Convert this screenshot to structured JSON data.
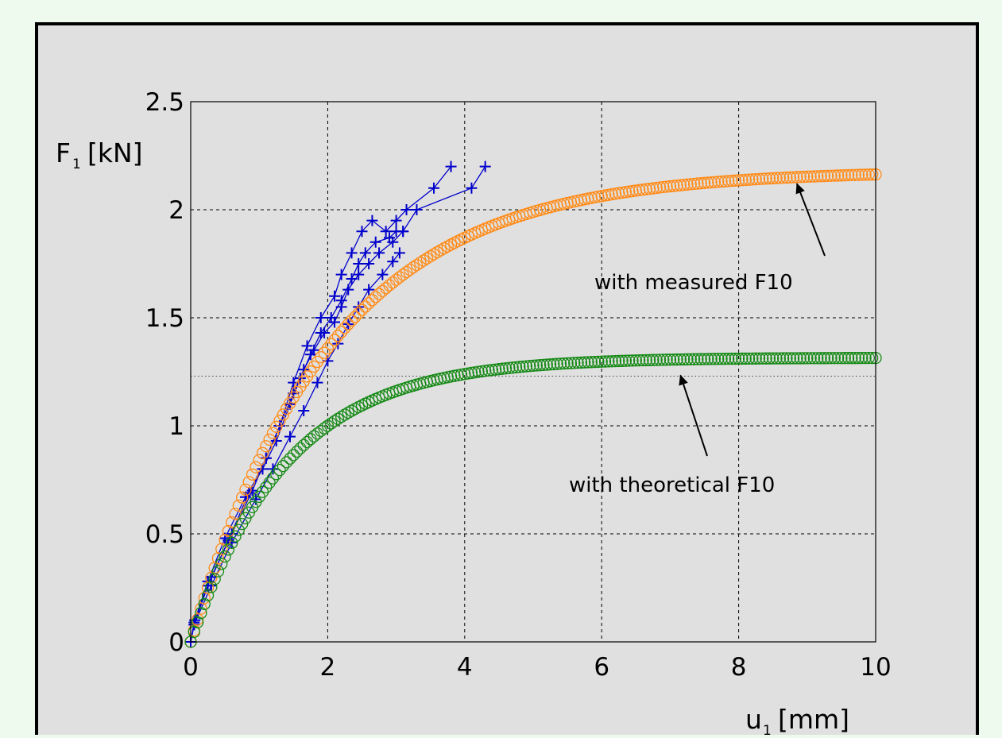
{
  "colors": {
    "page_background": "#effaef",
    "plot_background": "#e0e0e0",
    "measured": "#0000cc",
    "theoretical_measured_f10": "#ff8c1a",
    "theoretical_theoretical_f10": "#168a16",
    "grid": "#000000"
  },
  "chart_data": {
    "type": "line",
    "title": "",
    "xlabel": {
      "main": "u",
      "sub": "1",
      "unit": "[mm]"
    },
    "ylabel": {
      "main": "F",
      "sub": "1",
      "unit": "[kN]"
    },
    "xlim": [
      0,
      10
    ],
    "ylim": [
      0,
      2.5
    ],
    "xticks": [
      0,
      2,
      4,
      6,
      8,
      10
    ],
    "yticks": [
      0,
      0.5,
      1,
      1.5,
      2,
      2.5
    ],
    "xtick_labels": [
      "0",
      "2",
      "4",
      "6",
      "8",
      "10"
    ],
    "ytick_labels": [
      "0",
      "0.5",
      "1",
      "1.5",
      "2",
      "2.5"
    ],
    "grid": true,
    "reference_line": {
      "y": 1.23,
      "style": "dotted"
    },
    "series": [
      {
        "marker": "plus",
        "color_key": "measured",
        "x": [
          0,
          0.06,
          0.3,
          0.6,
          0.9,
          1.1,
          1.3,
          1.5,
          1.7,
          1.9,
          2.1,
          2.2,
          2.35,
          2.5,
          2.65,
          2.85,
          3.0,
          3.15,
          3.55,
          3.8
        ],
        "y": [
          0,
          0.1,
          0.3,
          0.5,
          0.7,
          0.85,
          1.0,
          1.2,
          1.37,
          1.5,
          1.6,
          1.7,
          1.8,
          1.9,
          1.95,
          1.9,
          1.95,
          2.0,
          2.1,
          2.2
        ]
      },
      {
        "marker": "plus",
        "color_key": "measured",
        "x": [
          0,
          0.05,
          0.25,
          0.5,
          0.8,
          1.05,
          1.25,
          1.45,
          1.6,
          1.75,
          1.9,
          2.05,
          2.2,
          2.35,
          2.45,
          2.55,
          2.7,
          2.9,
          3.0,
          3.1
        ],
        "y": [
          0,
          0.09,
          0.28,
          0.48,
          0.67,
          0.8,
          0.93,
          1.1,
          1.22,
          1.33,
          1.43,
          1.5,
          1.58,
          1.68,
          1.75,
          1.8,
          1.85,
          1.87,
          1.9,
          1.9
        ]
      },
      {
        "marker": "plus",
        "color_key": "measured",
        "x": [
          0,
          0.05,
          0.25,
          0.55,
          0.85,
          1.1,
          1.3,
          1.5,
          1.65,
          1.8,
          1.95,
          2.1,
          2.2,
          2.3,
          2.45,
          2.6,
          2.75,
          2.95,
          3.1,
          3.3,
          4.1,
          4.3
        ],
        "y": [
          0,
          0.08,
          0.26,
          0.47,
          0.69,
          0.85,
          1.0,
          1.15,
          1.26,
          1.35,
          1.43,
          1.48,
          1.55,
          1.63,
          1.7,
          1.75,
          1.8,
          1.85,
          1.9,
          2.0,
          2.1,
          2.2
        ]
      },
      {
        "marker": "plus",
        "color_key": "measured",
        "x": [
          0,
          0.05,
          0.3,
          0.6,
          0.95,
          1.2,
          1.45,
          1.65,
          1.85,
          2.0,
          2.15,
          2.3,
          2.45,
          2.6,
          2.8,
          2.95,
          3.05
        ],
        "y": [
          0,
          0.08,
          0.26,
          0.46,
          0.66,
          0.8,
          0.95,
          1.07,
          1.2,
          1.3,
          1.38,
          1.47,
          1.55,
          1.63,
          1.7,
          1.76,
          1.8
        ]
      },
      {
        "marker": "circle",
        "color_key": "theoretical_measured_f10",
        "formula": "2.18*(1-exp(-x/2.05))",
        "x_start": 0,
        "x_end": 10,
        "x_step": 0.05
      },
      {
        "marker": "circle",
        "color_key": "theoretical_theoretical_f10",
        "formula": "1.315*(1-exp(-x/1.4))",
        "x_start": 0,
        "x_end": 10,
        "x_step": 0.05
      }
    ],
    "annotations": [
      {
        "text": "with measured F10",
        "points_to": {
          "x": 8.85,
          "y": 2.15
        }
      },
      {
        "text": "with theoretical F10",
        "points_to": {
          "x": 7.15,
          "y": 1.3
        }
      }
    ]
  }
}
